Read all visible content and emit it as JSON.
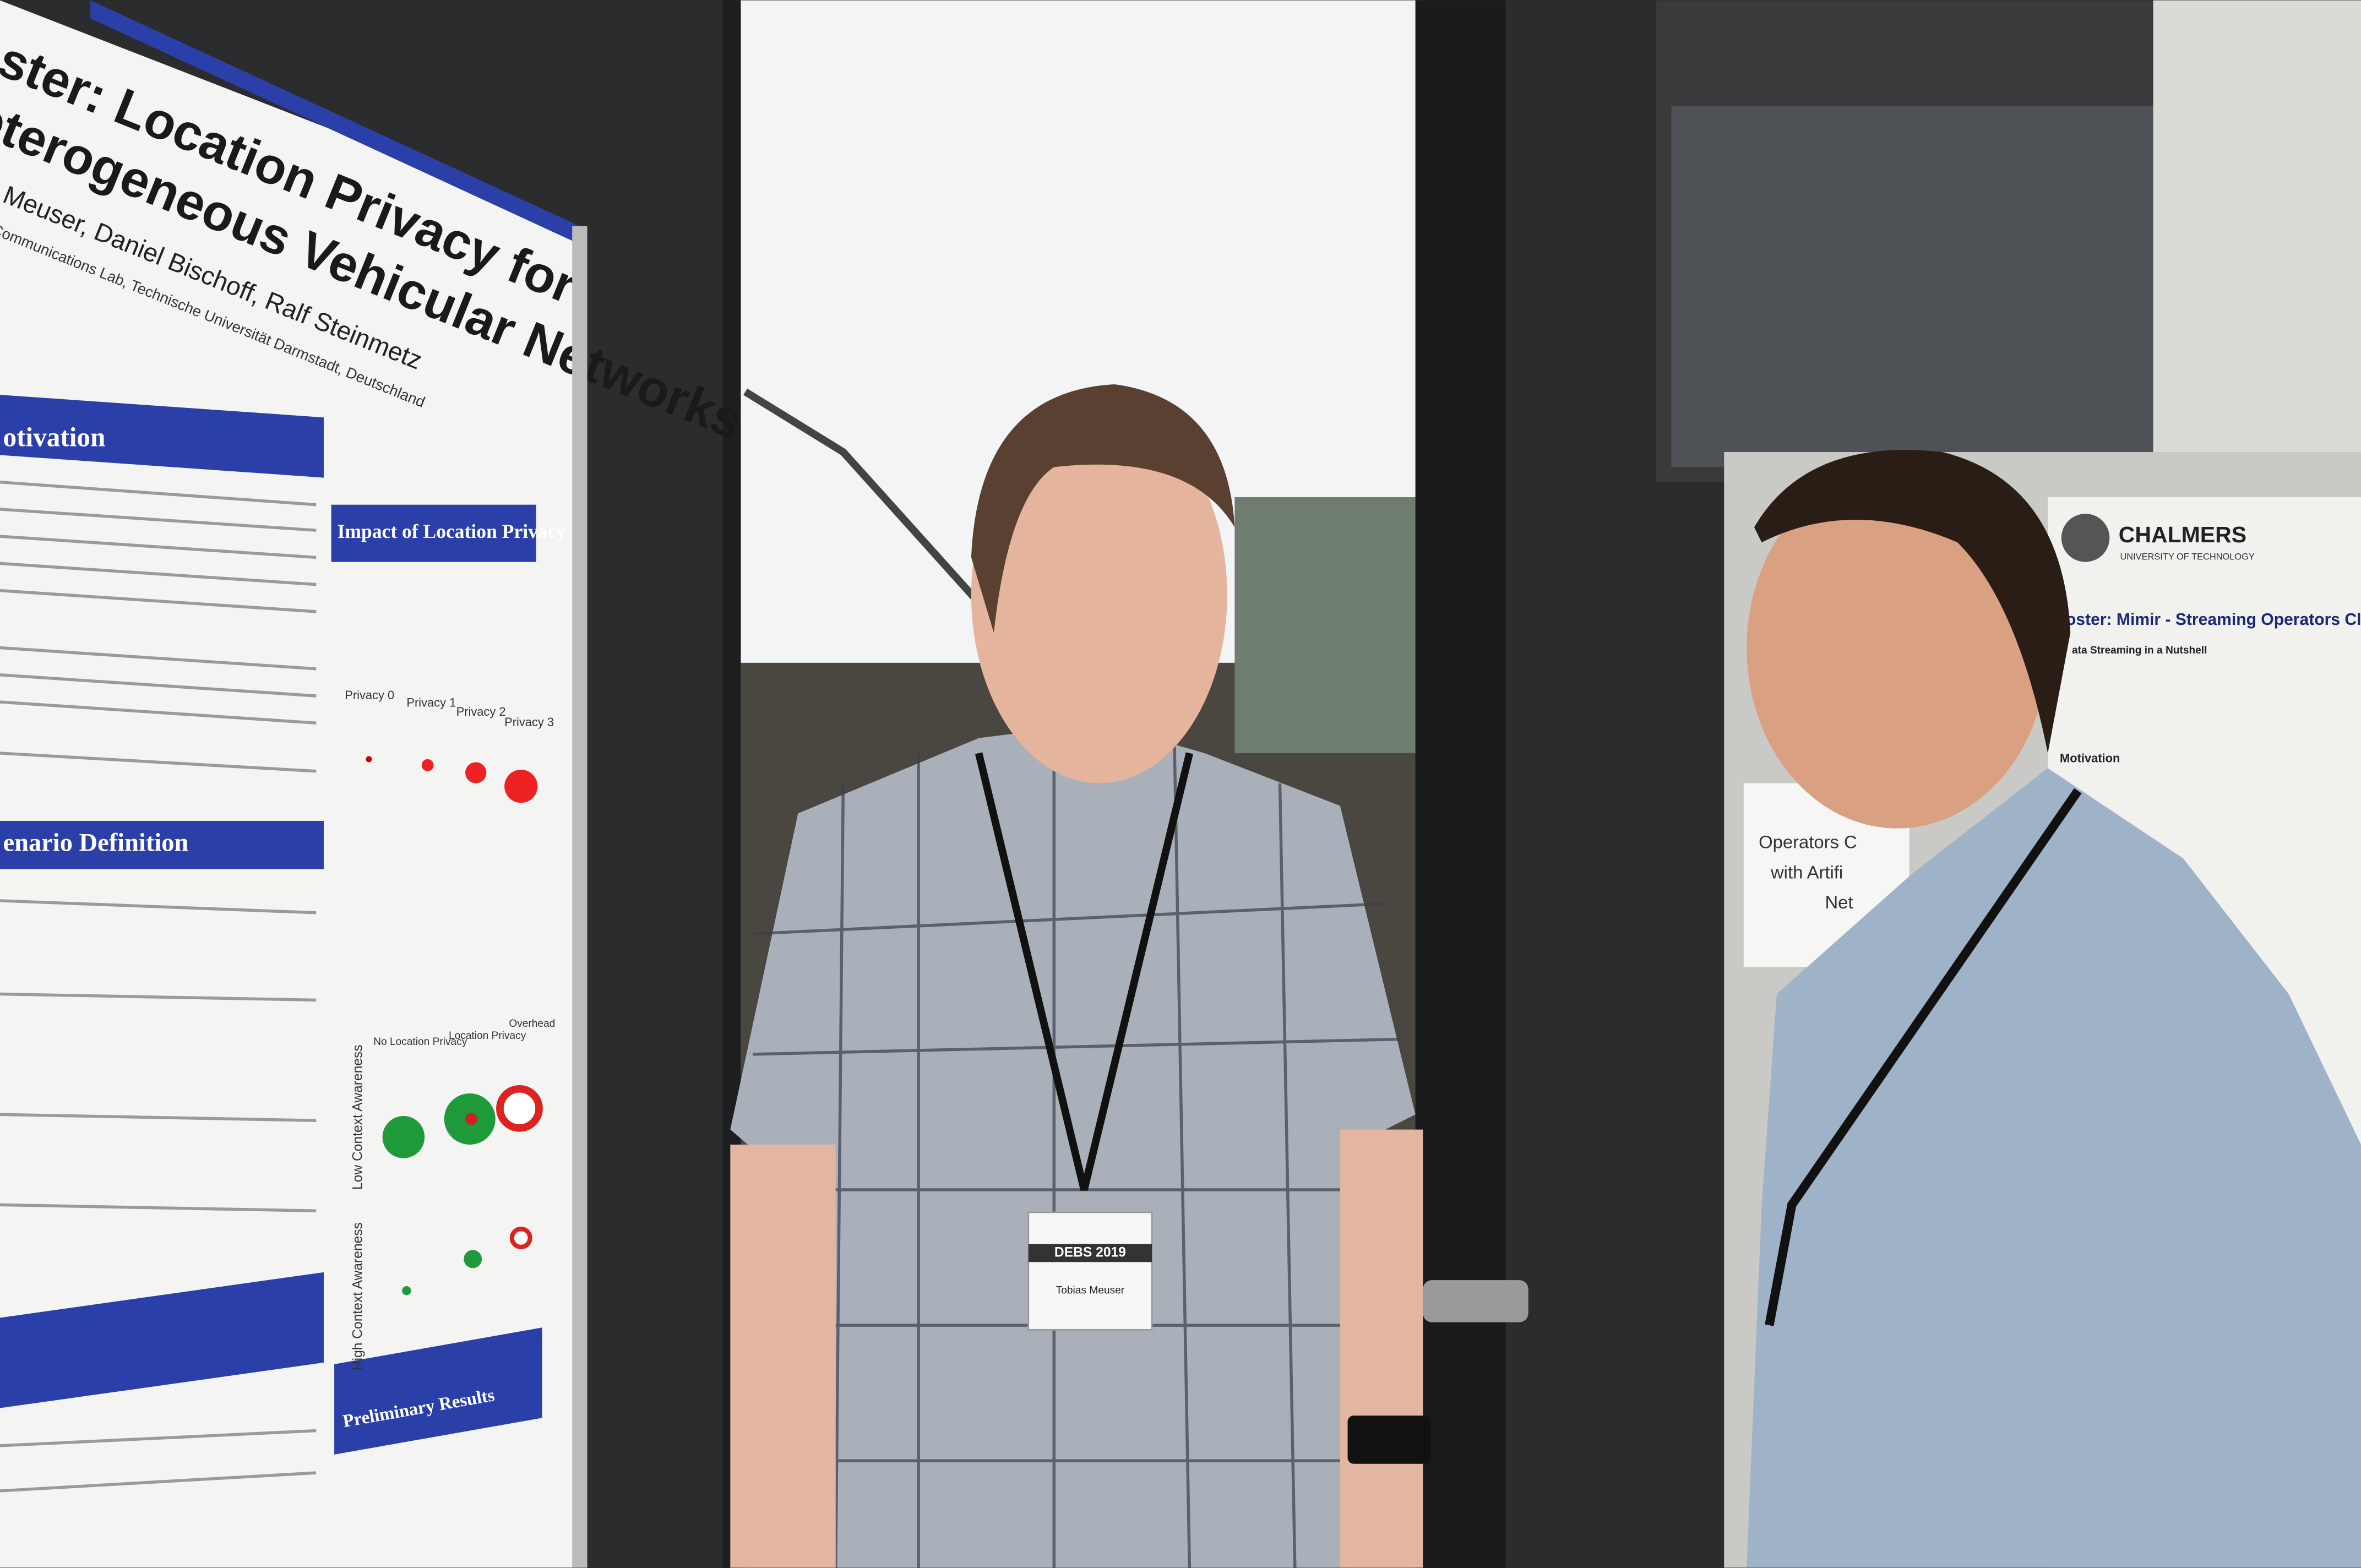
{
  "poster_left": {
    "title_lines": [
      "ster: Location Privacy for",
      "eterogeneous Vehicular Networks"
    ],
    "authors": "bias Meuser, Daniel Bischoff, Ralf Steinmetz",
    "affiliation": "ltimedia Communications Lab, Technische Universität Darmstadt, Deutschland",
    "sections": [
      "otivation",
      "Impact of Location Privacy",
      "enario Definition",
      "Preliminary Results"
    ],
    "privacy_levels": [
      "Privacy 0",
      "Privacy 1",
      "Privacy 2",
      "Privacy 3"
    ],
    "table_headers": [
      "No Location Privacy",
      "Location Privacy",
      "Overhead"
    ],
    "row_labels": [
      "Low Context Awareness",
      "High Context Awareness"
    ]
  },
  "badge": {
    "event": "DEBS 2019",
    "name": "Tobias Meuser"
  },
  "poster_right": {
    "institution": "CHALMERS",
    "institution_sub": "UNIVERSITY OF TECHNOLOGY",
    "title": "oster: Mimir - Streaming Operators Cl",
    "sections": [
      "ata Streaming in a Nutshell",
      "Motivation"
    ]
  },
  "sign": {
    "lines": [
      "Operators C",
      "with Artifi",
      "Net"
    ]
  }
}
